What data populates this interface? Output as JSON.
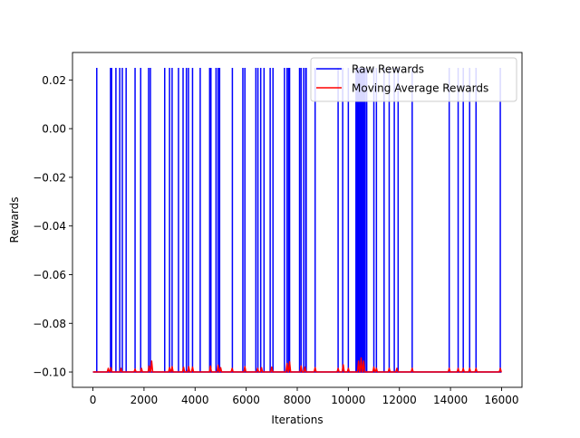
{
  "chart_data": {
    "type": "line",
    "title": "",
    "xlabel": "Iterations",
    "ylabel": "Rewards",
    "xlim": [
      -800,
      16800
    ],
    "ylim": [
      -0.1063,
      0.0313
    ],
    "xticks": [
      0,
      2000,
      4000,
      6000,
      8000,
      10000,
      12000,
      14000,
      16000
    ],
    "xtick_labels": [
      "0",
      "2000",
      "4000",
      "6000",
      "8000",
      "10000",
      "12000",
      "14000",
      "16000"
    ],
    "yticks": [
      0.02,
      0.0,
      -0.02,
      -0.04,
      -0.06,
      -0.08,
      -0.1
    ],
    "ytick_labels": [
      "0.02",
      "0.00",
      "−0.02",
      "−0.04",
      "−0.06",
      "−0.08",
      "−0.10"
    ],
    "grid": false,
    "legend_position": "top-right",
    "baseline_value": -0.1,
    "spike_value": 0.025,
    "series": [
      {
        "name": "Raw Rewards",
        "color": "#0000ff",
        "spike_iterations": [
          150,
          690,
          730,
          900,
          1050,
          1150,
          1300,
          1650,
          1870,
          2180,
          2250,
          2810,
          3000,
          3100,
          3350,
          3530,
          3660,
          3740,
          3900,
          4200,
          4570,
          4620,
          4820,
          4900,
          4960,
          5460,
          5870,
          5950,
          6380,
          6460,
          6570,
          6700,
          6940,
          7050,
          7500,
          7600,
          7660,
          7700,
          8090,
          8150,
          8250,
          8330,
          8350,
          8700,
          9600,
          9780,
          10000,
          10300,
          10340,
          10380,
          10420,
          10460,
          10500,
          10540,
          10580,
          10620,
          10660,
          10720,
          11000,
          11100,
          11400,
          11600,
          11800,
          11950,
          12500,
          13950,
          14300,
          14500,
          14750,
          15000,
          15950
        ]
      },
      {
        "name": "Moving Average Rewards",
        "color": "#ff0000",
        "bump_points": [
          [
            600,
            -0.0985
          ],
          [
            700,
            -0.0982
          ],
          [
            1100,
            -0.0985
          ],
          [
            1650,
            -0.0988
          ],
          [
            1900,
            -0.0985
          ],
          [
            2200,
            -0.0975
          ],
          [
            2300,
            -0.0955
          ],
          [
            3000,
            -0.0982
          ],
          [
            3100,
            -0.0978
          ],
          [
            3550,
            -0.098
          ],
          [
            3750,
            -0.0978
          ],
          [
            3900,
            -0.098
          ],
          [
            4600,
            -0.0975
          ],
          [
            4900,
            -0.0972
          ],
          [
            5000,
            -0.0982
          ],
          [
            5450,
            -0.0985
          ],
          [
            5950,
            -0.0978
          ],
          [
            6450,
            -0.0985
          ],
          [
            6600,
            -0.0982
          ],
          [
            7000,
            -0.098
          ],
          [
            7600,
            -0.0965
          ],
          [
            7700,
            -0.0958
          ],
          [
            8150,
            -0.0975
          ],
          [
            8300,
            -0.098
          ],
          [
            8700,
            -0.0982
          ],
          [
            9600,
            -0.0985
          ],
          [
            9800,
            -0.097
          ],
          [
            10000,
            -0.0985
          ],
          [
            10400,
            -0.0955
          ],
          [
            10500,
            -0.0942
          ],
          [
            10600,
            -0.0955
          ],
          [
            11000,
            -0.098
          ],
          [
            11100,
            -0.0985
          ],
          [
            11600,
            -0.0985
          ],
          [
            11900,
            -0.0985
          ],
          [
            12500,
            -0.0985
          ],
          [
            13950,
            -0.0985
          ],
          [
            14300,
            -0.0985
          ],
          [
            14500,
            -0.0985
          ],
          [
            14750,
            -0.0985
          ],
          [
            15000,
            -0.0985
          ],
          [
            15950,
            -0.0985
          ]
        ]
      }
    ]
  }
}
